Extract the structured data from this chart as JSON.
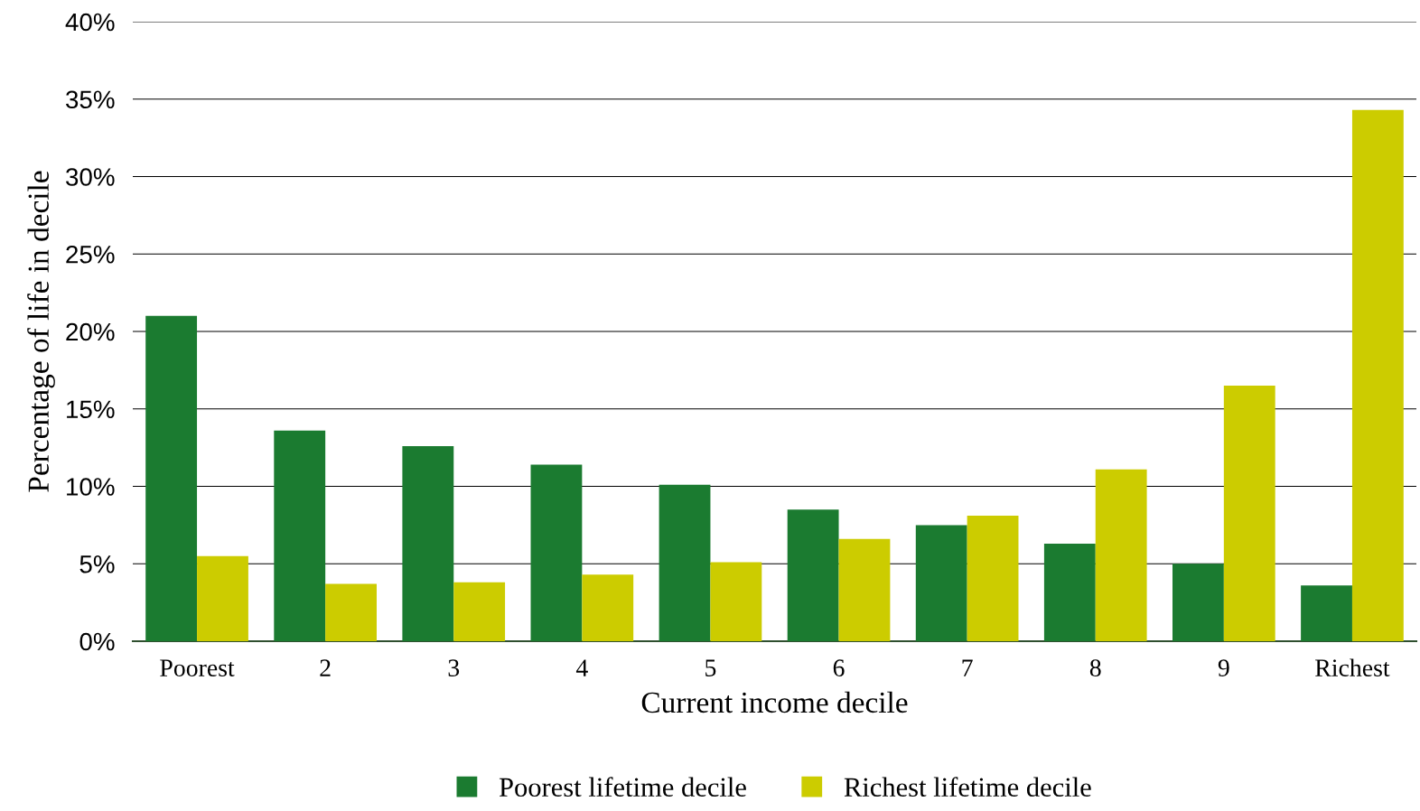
{
  "chart_data": {
    "type": "bar",
    "xlabel": "Current income decile",
    "ylabel": "Percentage of life in decile",
    "categories": [
      "Poorest",
      "2",
      "3",
      "4",
      "5",
      "6",
      "7",
      "8",
      "9",
      "Richest"
    ],
    "series": [
      {
        "name": "Poorest lifetime decile",
        "color": "#1b7b30",
        "values": [
          21.0,
          13.6,
          12.6,
          11.4,
          10.1,
          8.5,
          7.5,
          6.3,
          5.0,
          3.6
        ]
      },
      {
        "name": "Richest lifetime decile",
        "color": "#cccc00",
        "values": [
          5.5,
          3.7,
          3.8,
          4.3,
          5.1,
          6.6,
          8.1,
          11.1,
          16.5,
          34.3
        ]
      }
    ],
    "ylim": [
      0,
      40
    ],
    "yticks": [
      {
        "value": 0,
        "label": "0%"
      },
      {
        "value": 5,
        "label": "5%"
      },
      {
        "value": 10,
        "label": "10%"
      },
      {
        "value": 15,
        "label": "15%"
      },
      {
        "value": 20,
        "label": "20%"
      },
      {
        "value": 25,
        "label": "25%"
      },
      {
        "value": 30,
        "label": "30%"
      },
      {
        "value": 35,
        "label": "35%"
      },
      {
        "value": 40,
        "label": "40%"
      }
    ],
    "grid": "y",
    "legend": "bottom"
  }
}
